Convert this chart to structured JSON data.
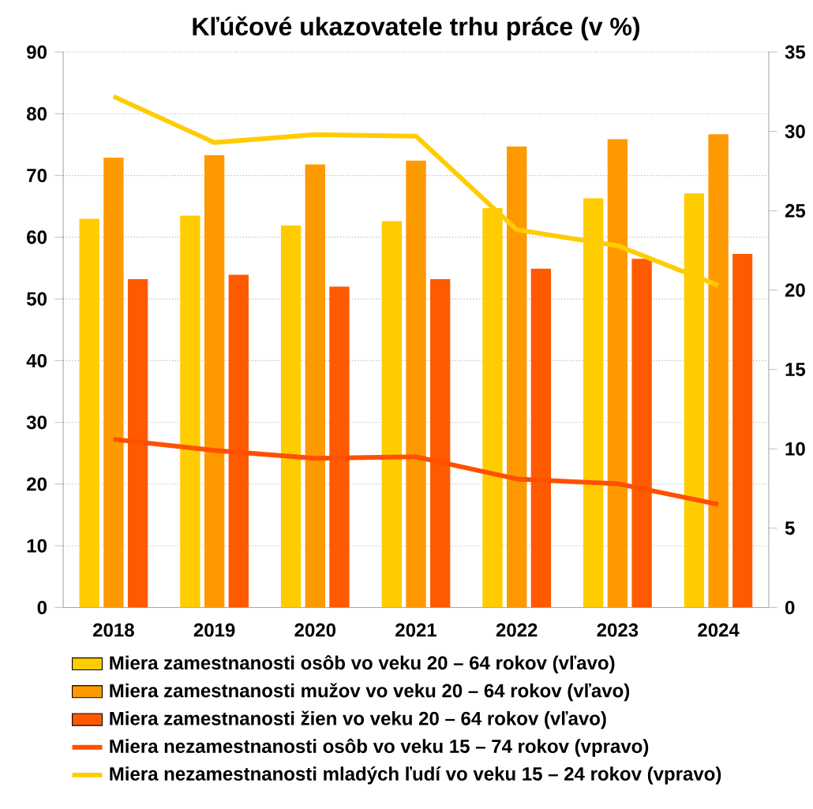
{
  "chart_data": {
    "type": "bar",
    "title": "Kľúčové ukazovatele trhu práce (v %)",
    "categories": [
      "2018",
      "2019",
      "2020",
      "2021",
      "2022",
      "2023",
      "2024"
    ],
    "series": [
      {
        "name": "Miera zamestnanosti osôb vo veku 20 – 64 rokov (vľavo)",
        "color": "#ffcc00",
        "values": [
          63.0,
          63.5,
          61.9,
          62.6,
          64.7,
          66.3,
          67.1
        ]
      },
      {
        "name": "Miera zamestnanosti mužov vo veku 20 – 64 rokov (vľavo)",
        "color": "#ff9900",
        "values": [
          72.9,
          73.3,
          71.8,
          72.4,
          74.7,
          75.9,
          76.7
        ]
      },
      {
        "name": "Miera zamestnanosti žien vo veku 20 – 64 rokov (vľavo)",
        "color": "#ff5a00",
        "values": [
          53.2,
          53.9,
          52.0,
          53.2,
          54.9,
          56.5,
          57.3
        ]
      },
      {
        "name": "Miera nezamestnanosti osôb vo veku 15 – 74 rokov (vpravo)",
        "type": "line",
        "axis": "y2",
        "color": "#ff5000",
        "values": [
          10.6,
          9.9,
          9.4,
          9.5,
          8.1,
          7.8,
          6.5
        ]
      },
      {
        "name": "Miera nezamestnanosti mladých ľudí vo veku 15 – 24 rokov (vpravo)",
        "type": "line",
        "axis": "y2",
        "color": "#ffcc00",
        "values": [
          32.2,
          29.3,
          29.8,
          29.7,
          23.8,
          22.8,
          20.3
        ]
      }
    ],
    "ylim": [
      0,
      90
    ],
    "yticks": [
      0,
      10,
      20,
      30,
      40,
      50,
      60,
      70,
      80,
      90
    ],
    "y2lim": [
      0,
      35
    ],
    "y2ticks": [
      0,
      5,
      10,
      15,
      20,
      25,
      30,
      35
    ],
    "grid": "y",
    "legend": "bottom"
  }
}
